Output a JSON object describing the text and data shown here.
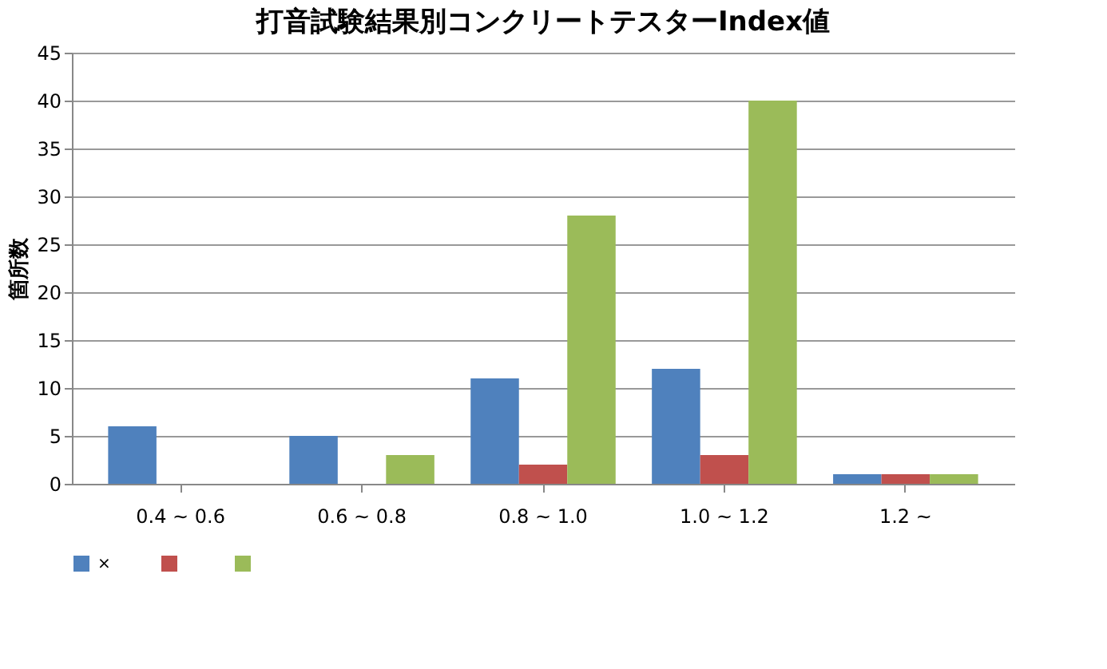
{
  "chart_data": {
    "type": "bar",
    "title": "打音試験結果別コンクリートテスターIndex値",
    "ylabel": "箇所数",
    "categories": [
      "0.4 ~ 0.6",
      "0.6 ~ 0.8",
      "0.8 ~ 1.0",
      "1.0 ~ 1.2",
      "1.2 ~"
    ],
    "series": [
      {
        "name": "×",
        "color": "#4f81bd",
        "values": [
          6,
          5,
          11,
          12,
          1
        ]
      },
      {
        "color": "#c0504d",
        "values": [
          0,
          0,
          2,
          3,
          1
        ]
      },
      {
        "color": "#9bbb59",
        "values": [
          0,
          3,
          28,
          40,
          1
        ]
      }
    ],
    "ylim": [
      0,
      45
    ],
    "yticks": [
      0,
      5,
      10,
      15,
      20,
      25,
      30,
      35,
      40,
      45
    ],
    "grid": "y",
    "legend": "bottom"
  }
}
